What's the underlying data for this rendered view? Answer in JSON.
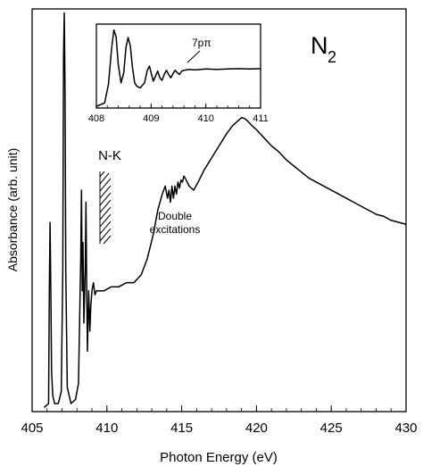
{
  "chart_data": [
    {
      "type": "line",
      "title": "N₂",
      "molecule_label": {
        "base": "N",
        "sub": "2"
      },
      "xlabel": "Photon Energy (eV)",
      "ylabel": "Absorbance (arb. unit)",
      "xlim": [
        405,
        430
      ],
      "ylim": [
        0,
        1
      ],
      "x_ticks": [
        "405",
        "410",
        "415",
        "420",
        "425",
        "430"
      ],
      "y_ticks": [],
      "grid": false,
      "annotations": [
        {
          "text": "N-K",
          "x": 410.0
        },
        {
          "text": "Double",
          "x": 415.5
        },
        {
          "text": "excitations",
          "x": 415.5
        }
      ],
      "series": [
        {
          "x": [
            405.8,
            406.1,
            406.15,
            406.2,
            406.25,
            406.3,
            406.38,
            406.5,
            406.75,
            406.95,
            407.05,
            407.1,
            407.15,
            407.2,
            407.25,
            407.35,
            407.6,
            407.9,
            408.1,
            408.25,
            408.3,
            408.35,
            408.4,
            408.46,
            408.55,
            408.6,
            408.65,
            408.7,
            408.78,
            408.86,
            408.92,
            409.0,
            409.1,
            409.2,
            409.3,
            409.5,
            409.8,
            410.3,
            410.8,
            411.3,
            411.8,
            412.3,
            412.7,
            413.1,
            413.4,
            413.7,
            413.9,
            414.05,
            414.15,
            414.25,
            414.35,
            414.45,
            414.55,
            414.65,
            414.75,
            414.85,
            414.95,
            415.05,
            415.15,
            415.3,
            415.5,
            415.8,
            416.1,
            416.5,
            417.0,
            417.5,
            418.0,
            418.4,
            418.7,
            419.0,
            419.2,
            419.4,
            419.7,
            420.0,
            420.5,
            421.0,
            421.5,
            422.0,
            422.5,
            423.0,
            423.5,
            424.0,
            424.5,
            425.0,
            425.5,
            426.0,
            426.5,
            427.0,
            427.5,
            428.0,
            428.5,
            429.0,
            429.5,
            430.0
          ],
          "y": [
            0.01,
            0.02,
            0.3,
            0.47,
            0.3,
            0.1,
            0.04,
            0.02,
            0.02,
            0.05,
            0.35,
            0.88,
            0.99,
            0.8,
            0.35,
            0.06,
            0.02,
            0.03,
            0.07,
            0.38,
            0.55,
            0.3,
            0.42,
            0.22,
            0.35,
            0.52,
            0.3,
            0.15,
            0.3,
            0.2,
            0.26,
            0.3,
            0.32,
            0.29,
            0.3,
            0.3,
            0.3,
            0.31,
            0.31,
            0.32,
            0.32,
            0.34,
            0.38,
            0.44,
            0.5,
            0.54,
            0.56,
            0.53,
            0.55,
            0.52,
            0.56,
            0.53,
            0.56,
            0.54,
            0.57,
            0.555,
            0.575,
            0.57,
            0.585,
            0.575,
            0.56,
            0.55,
            0.57,
            0.6,
            0.63,
            0.66,
            0.69,
            0.71,
            0.72,
            0.73,
            0.728,
            0.722,
            0.71,
            0.7,
            0.68,
            0.66,
            0.645,
            0.625,
            0.61,
            0.595,
            0.58,
            0.57,
            0.56,
            0.55,
            0.54,
            0.53,
            0.52,
            0.51,
            0.5,
            0.49,
            0.485,
            0.475,
            0.47,
            0.465
          ]
        }
      ]
    },
    {
      "type": "line",
      "title": "",
      "xlabel": "",
      "ylabel": "",
      "xlim": [
        408,
        411
      ],
      "ylim": [
        0,
        1
      ],
      "x_ticks": [
        "408",
        "409",
        "410",
        "411"
      ],
      "y_ticks": [],
      "grid": false,
      "annotations": [
        {
          "text": "7pπ",
          "x": 409.6
        }
      ],
      "series": [
        {
          "x": [
            408.0,
            408.15,
            408.22,
            408.28,
            408.32,
            408.36,
            408.4,
            408.45,
            408.5,
            408.54,
            408.58,
            408.62,
            408.66,
            408.7,
            408.74,
            408.8,
            408.88,
            408.93,
            408.97,
            409.0,
            409.04,
            409.08,
            409.12,
            409.16,
            409.2,
            409.24,
            409.28,
            409.32,
            409.36,
            409.4,
            409.44,
            409.48,
            409.52,
            409.56,
            409.6,
            409.7,
            409.8,
            409.9,
            410.0,
            410.2,
            410.4,
            410.6,
            410.8,
            411.0
          ],
          "y": [
            0.02,
            0.06,
            0.28,
            0.72,
            0.93,
            0.85,
            0.52,
            0.3,
            0.42,
            0.72,
            0.84,
            0.74,
            0.48,
            0.3,
            0.26,
            0.24,
            0.3,
            0.45,
            0.5,
            0.42,
            0.32,
            0.38,
            0.44,
            0.36,
            0.33,
            0.4,
            0.45,
            0.4,
            0.36,
            0.41,
            0.45,
            0.42,
            0.4,
            0.44,
            0.45,
            0.46,
            0.455,
            0.46,
            0.465,
            0.46,
            0.465,
            0.47,
            0.465,
            0.47
          ]
        }
      ]
    }
  ]
}
